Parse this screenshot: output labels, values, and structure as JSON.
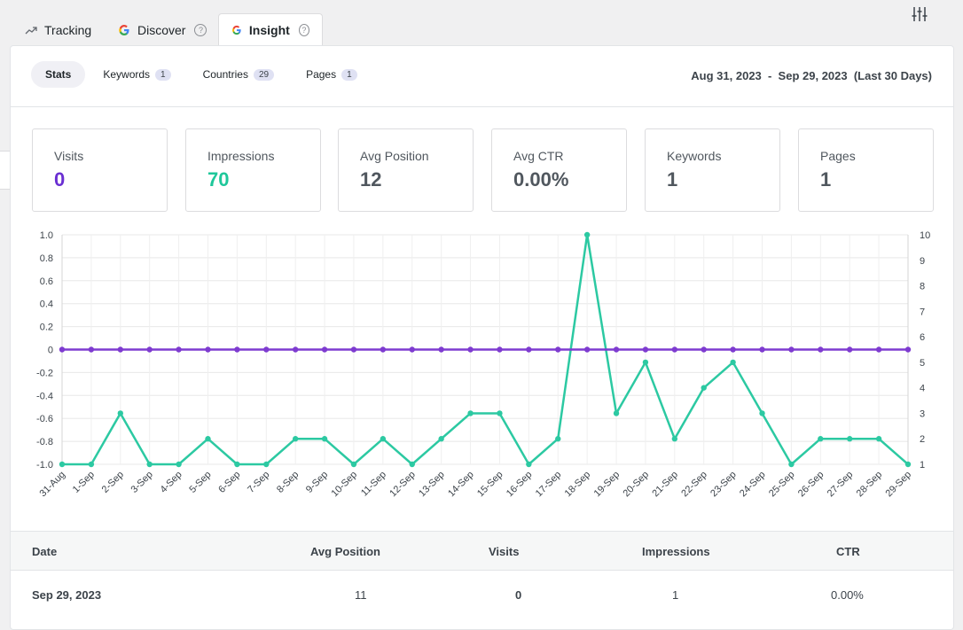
{
  "tabs": [
    {
      "label": "Tracking",
      "icon": "trend-arrow-icon"
    },
    {
      "label": "Discover",
      "icon": "google-icon"
    },
    {
      "label": "Insight",
      "icon": "google-icon",
      "active": true
    }
  ],
  "subtabs": [
    {
      "label": "Stats",
      "active": true
    },
    {
      "label": "Keywords",
      "count": "1"
    },
    {
      "label": "Countries",
      "count": "29"
    },
    {
      "label": "Pages",
      "count": "1"
    }
  ],
  "date_range": "Aug 31, 2023  -  Sep 29, 2023  (Last 30 Days)",
  "stats": [
    {
      "label": "Visits",
      "value": "0",
      "color": "#6a2fd2"
    },
    {
      "label": "Impressions",
      "value": "70",
      "color": "#1ec79a"
    },
    {
      "label": "Avg Position",
      "value": "12",
      "color": "#50575e"
    },
    {
      "label": "Avg CTR",
      "value": "0.00%",
      "color": "#50575e"
    },
    {
      "label": "Keywords",
      "value": "1",
      "color": "#50575e"
    },
    {
      "label": "Pages",
      "value": "1",
      "color": "#50575e"
    }
  ],
  "chart_data": {
    "type": "line",
    "categories": [
      "31-Aug",
      "1-Sep",
      "2-Sep",
      "3-Sep",
      "4-Sep",
      "5-Sep",
      "6-Sep",
      "7-Sep",
      "8-Sep",
      "9-Sep",
      "10-Sep",
      "11-Sep",
      "12-Sep",
      "13-Sep",
      "14-Sep",
      "15-Sep",
      "16-Sep",
      "17-Sep",
      "18-Sep",
      "19-Sep",
      "20-Sep",
      "21-Sep",
      "22-Sep",
      "23-Sep",
      "24-Sep",
      "25-Sep",
      "26-Sep",
      "27-Sep",
      "28-Sep",
      "29-Sep"
    ],
    "left_axis": {
      "ticks": [
        "1.0",
        "0.8",
        "0.6",
        "0.4",
        "0.2",
        "0",
        "-0.2",
        "-0.4",
        "-0.6",
        "-0.8",
        "-1.0"
      ],
      "ylim": [
        -1,
        1
      ]
    },
    "right_axis": {
      "ticks": [
        "10",
        "9",
        "8",
        "7",
        "6",
        "5",
        "4",
        "3",
        "2",
        "1"
      ],
      "ylim": [
        1,
        10
      ]
    },
    "series": [
      {
        "axis": "right",
        "color": "#2cc9a2",
        "values": [
          1,
          1,
          3,
          1,
          1,
          2,
          1,
          1,
          2,
          2,
          1,
          2,
          1,
          2,
          3,
          3,
          1,
          2,
          10,
          3,
          5,
          2,
          4,
          5,
          3,
          1,
          2,
          2,
          2,
          1
        ]
      },
      {
        "axis": "left",
        "color": "#7e3bd0",
        "values": [
          0,
          0,
          0,
          0,
          0,
          0,
          0,
          0,
          0,
          0,
          0,
          0,
          0,
          0,
          0,
          0,
          0,
          0,
          0,
          0,
          0,
          0,
          0,
          0,
          0,
          0,
          0,
          0,
          0,
          0
        ]
      }
    ],
    "grid": true
  },
  "table": {
    "headers": [
      "Date",
      "Avg Position",
      "Visits",
      "Impressions",
      "CTR"
    ],
    "rows": [
      [
        "Sep 29, 2023",
        "11",
        "0",
        "1",
        "0.00%"
      ]
    ]
  }
}
